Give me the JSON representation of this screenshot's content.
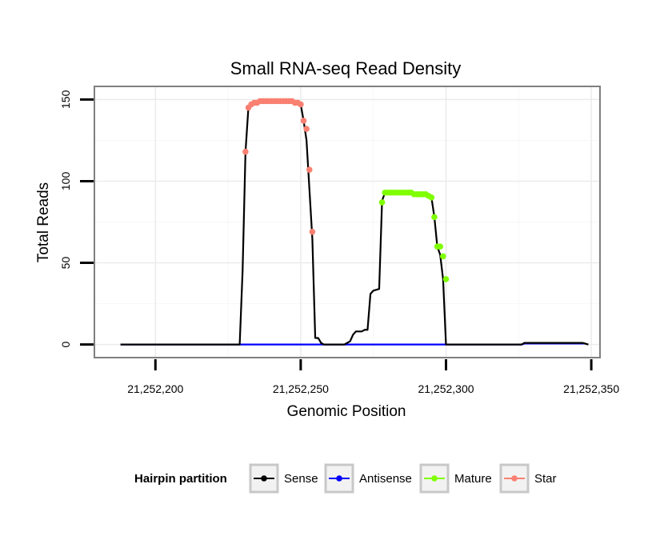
{
  "chart_data": {
    "type": "line",
    "title": "Small RNA-seq Read Density",
    "xlabel": "Genomic Position",
    "ylabel": "Total Reads",
    "xlim": [
      21252179,
      21252353
    ],
    "ylim": [
      -8,
      158
    ],
    "x_ticks": [
      21252200,
      21252250,
      21252300,
      21252350
    ],
    "x_tick_labels": [
      "21,252,200",
      "21,252,250",
      "21,252,300",
      "21,252,350"
    ],
    "y_ticks": [
      0,
      50,
      100,
      150
    ],
    "y_tick_labels": [
      "0",
      "50",
      "100",
      "150"
    ],
    "grid": true,
    "legend": {
      "title": "Hairpin partition",
      "position": "bottom",
      "entries": [
        {
          "label": "Sense",
          "color": "#000000"
        },
        {
          "label": "Antisense",
          "color": "#0000ff"
        },
        {
          "label": "Mature",
          "color": "#7fff00"
        },
        {
          "label": "Star",
          "color": "#fa8072"
        }
      ]
    },
    "series": [
      {
        "name": "Sense",
        "color": "#000000",
        "markers": false,
        "points": [
          [
            21252188,
            0
          ],
          [
            21252229,
            0
          ],
          [
            21252230,
            45
          ],
          [
            21252231,
            118
          ],
          [
            21252232,
            145
          ],
          [
            21252233,
            147
          ],
          [
            21252234,
            148
          ],
          [
            21252236,
            149
          ],
          [
            21252249,
            149
          ],
          [
            21252250,
            147
          ],
          [
            21252251,
            137
          ],
          [
            21252252,
            125
          ],
          [
            21252253,
            95
          ],
          [
            21252254,
            65
          ],
          [
            21252255,
            4
          ],
          [
            21252256,
            4
          ],
          [
            21252257,
            1
          ],
          [
            21252258,
            0
          ],
          [
            21252265,
            0
          ],
          [
            21252267,
            2
          ],
          [
            21252268,
            6
          ],
          [
            21252269,
            8
          ],
          [
            21252271,
            8
          ],
          [
            21252272,
            9
          ],
          [
            21252273,
            9
          ],
          [
            21252274,
            31
          ],
          [
            21252275,
            33
          ],
          [
            21252277,
            34
          ],
          [
            21252278,
            88
          ],
          [
            21252279,
            93
          ],
          [
            21252294,
            92
          ],
          [
            21252295,
            90
          ],
          [
            21252296,
            78
          ],
          [
            21252297,
            60
          ],
          [
            21252298,
            55
          ],
          [
            21252299,
            40
          ],
          [
            21252300,
            0
          ],
          [
            21252326,
            0
          ],
          [
            21252327,
            1
          ],
          [
            21252347,
            1
          ],
          [
            21252349,
            0
          ]
        ]
      },
      {
        "name": "Antisense",
        "color": "#0000ff",
        "markers": false,
        "points": [
          [
            21252188,
            0
          ],
          [
            21252326,
            0
          ],
          [
            21252327,
            0.6
          ],
          [
            21252348,
            0.6
          ]
        ]
      },
      {
        "name": "Mature",
        "color": "#7fff00",
        "markers": true,
        "points": [
          [
            21252278,
            87
          ],
          [
            21252279,
            93
          ],
          [
            21252280,
            93
          ],
          [
            21252281,
            93
          ],
          [
            21252282,
            93
          ],
          [
            21252283,
            93
          ],
          [
            21252284,
            93
          ],
          [
            21252285,
            93
          ],
          [
            21252286,
            93
          ],
          [
            21252287,
            93
          ],
          [
            21252288,
            93
          ],
          [
            21252289,
            92
          ],
          [
            21252290,
            92
          ],
          [
            21252291,
            92
          ],
          [
            21252292,
            92
          ],
          [
            21252293,
            92
          ],
          [
            21252294,
            91
          ],
          [
            21252295,
            90
          ],
          [
            21252296,
            78
          ],
          [
            21252297,
            60
          ],
          [
            21252298,
            60
          ],
          [
            21252299,
            54
          ],
          [
            21252300,
            40
          ]
        ]
      },
      {
        "name": "Star",
        "color": "#fa8072",
        "markers": true,
        "points": [
          [
            21252231,
            118
          ],
          [
            21252232,
            145
          ],
          [
            21252233,
            147
          ],
          [
            21252234,
            148
          ],
          [
            21252235,
            148
          ],
          [
            21252236,
            149
          ],
          [
            21252237,
            149
          ],
          [
            21252238,
            149
          ],
          [
            21252239,
            149
          ],
          [
            21252240,
            149
          ],
          [
            21252241,
            149
          ],
          [
            21252242,
            149
          ],
          [
            21252243,
            149
          ],
          [
            21252244,
            149
          ],
          [
            21252245,
            149
          ],
          [
            21252246,
            149
          ],
          [
            21252247,
            149
          ],
          [
            21252248,
            148
          ],
          [
            21252249,
            148
          ],
          [
            21252250,
            147
          ],
          [
            21252251,
            137
          ],
          [
            21252252,
            132
          ],
          [
            21252253,
            107
          ],
          [
            21252254,
            69
          ]
        ]
      }
    ]
  }
}
